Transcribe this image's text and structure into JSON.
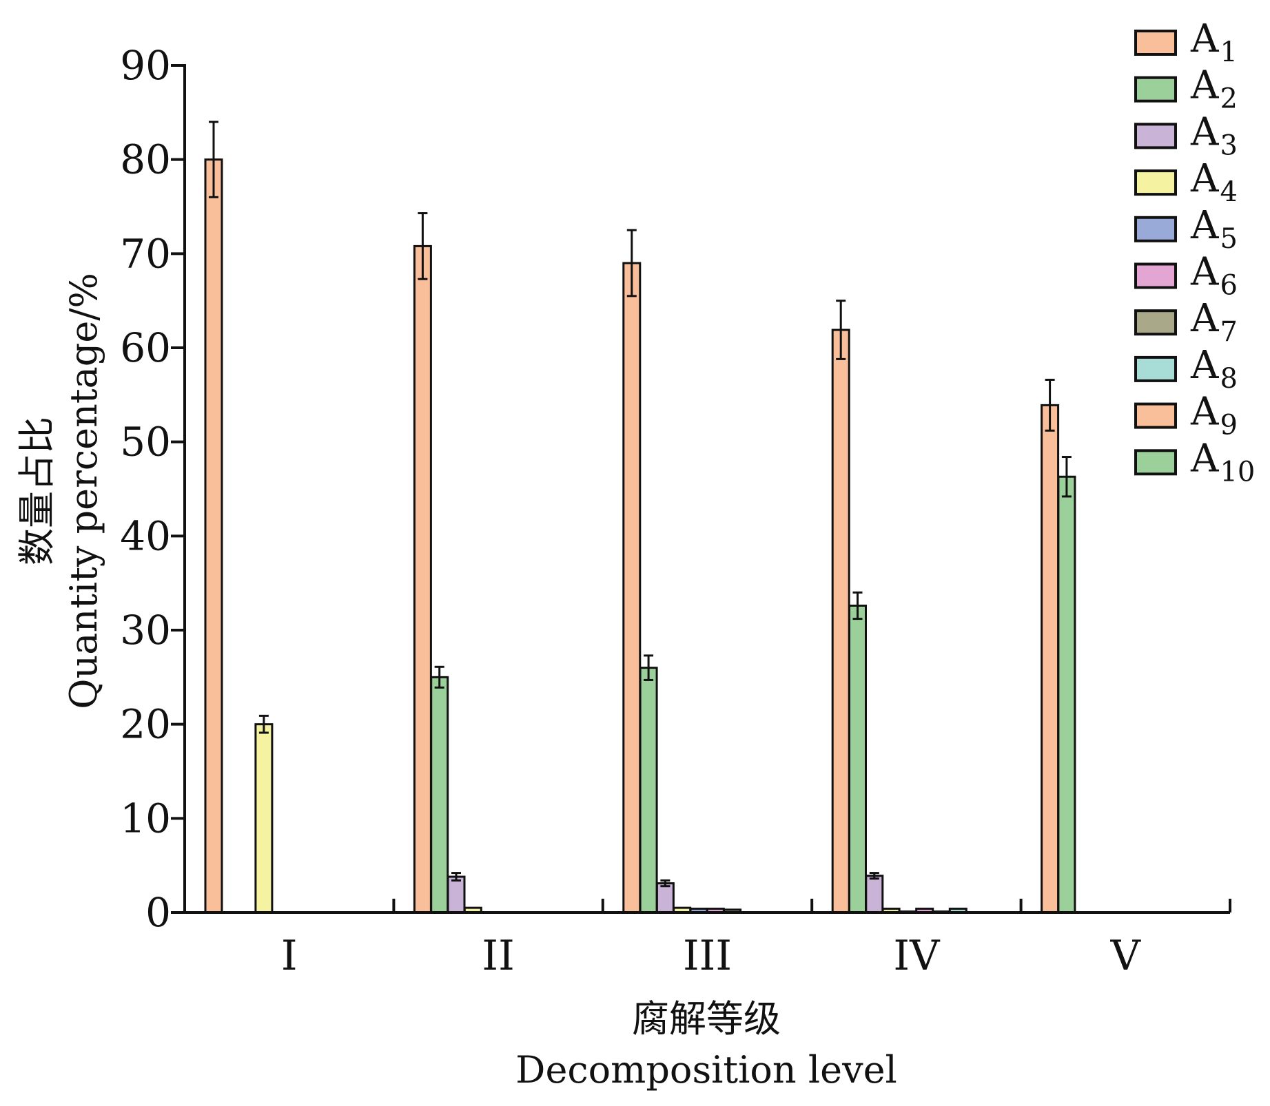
{
  "chart_data": {
    "type": "bar",
    "xlabel": "腐解等级",
    "xlabel_en": "Decomposition level",
    "ylabel": "数量占比",
    "ylabel_en": "Quantity percentage/%",
    "ylim": [
      0,
      90
    ],
    "yticks": [
      "0",
      "10",
      "20",
      "30",
      "40",
      "50",
      "60",
      "70",
      "80",
      "90"
    ],
    "categories": [
      "I",
      "II",
      "III",
      "IV",
      "V"
    ],
    "legend_position": "top-right",
    "grid": false,
    "series": [
      {
        "name": "A",
        "sub": "1",
        "color": "#F9BE9A",
        "values": [
          80,
          70.8,
          69,
          61.9,
          53.9
        ],
        "errors": [
          4,
          3.5,
          3.5,
          3.1,
          2.7
        ]
      },
      {
        "name": "A",
        "sub": "2",
        "color": "#9BD09B",
        "values": [
          0,
          25,
          26,
          32.6,
          46.3
        ],
        "errors": [
          0,
          1.1,
          1.3,
          1.4,
          2.1
        ]
      },
      {
        "name": "A",
        "sub": "3",
        "color": "#C9B3D6",
        "values": [
          0,
          3.8,
          3.1,
          3.9,
          0
        ],
        "errors": [
          0,
          0.4,
          0.3,
          0.3,
          0
        ]
      },
      {
        "name": "A",
        "sub": "4",
        "color": "#F5F3A2",
        "values": [
          20,
          0.5,
          0.5,
          0.4,
          0
        ],
        "errors": [
          0.9,
          0,
          0,
          0,
          0
        ]
      },
      {
        "name": "A",
        "sub": "5",
        "color": "#9AAAD8",
        "values": [
          0,
          0,
          0.4,
          0.1,
          0
        ],
        "errors": [
          0,
          0,
          0,
          0,
          0
        ]
      },
      {
        "name": "A",
        "sub": "6",
        "color": "#E3A6D2",
        "values": [
          0,
          0,
          0.4,
          0.4,
          0
        ],
        "errors": [
          0,
          0,
          0,
          0,
          0
        ]
      },
      {
        "name": "A",
        "sub": "7",
        "color": "#A9A888",
        "values": [
          0,
          0,
          0.3,
          0.1,
          0
        ],
        "errors": [
          0,
          0,
          0,
          0,
          0
        ]
      },
      {
        "name": "A",
        "sub": "8",
        "color": "#A8DCD6",
        "values": [
          0,
          0,
          0,
          0.4,
          0
        ],
        "errors": [
          0,
          0,
          0,
          0,
          0
        ]
      },
      {
        "name": "A",
        "sub": "9",
        "color": "#F9BE9A",
        "values": [
          0,
          0,
          0,
          0,
          0
        ],
        "errors": [
          0,
          0,
          0,
          0,
          0
        ]
      },
      {
        "name": "A",
        "sub": "10",
        "color": "#9BD09B",
        "values": [
          0,
          0,
          0,
          0,
          0
        ],
        "errors": [
          0,
          0,
          0,
          0,
          0
        ]
      }
    ]
  }
}
